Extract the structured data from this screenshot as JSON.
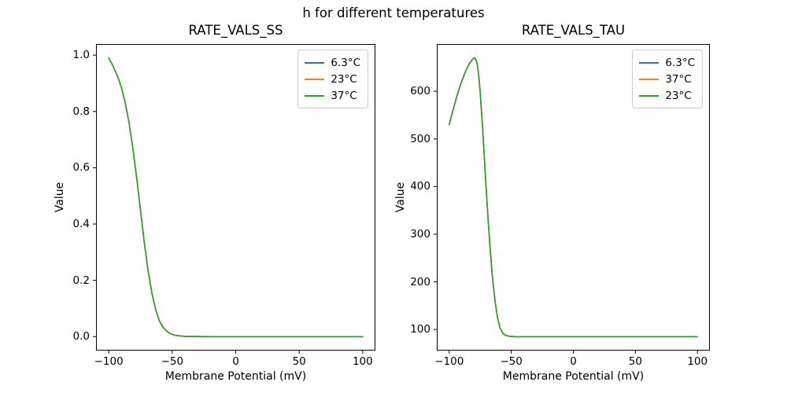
{
  "figure": {
    "title": "h for different temperatures",
    "background": "#ffffff"
  },
  "chart_data": [
    {
      "type": "line",
      "title": "RATE_VALS_SS",
      "xlabel": "Membrane Potential (mV)",
      "ylabel": "Value",
      "xlim": [
        -110,
        110
      ],
      "ylim": [
        -0.0495,
        1.0395
      ],
      "grid": false,
      "xticks": {
        "values": [
          -100,
          -50,
          0,
          50,
          100
        ],
        "labels": [
          "−100",
          "−50",
          "0",
          "50",
          "100"
        ]
      },
      "yticks": {
        "values": [
          0.0,
          0.2,
          0.4,
          0.6,
          0.8,
          1.0
        ],
        "labels": [
          "0.0",
          "0.2",
          "0.4",
          "0.6",
          "0.8",
          "1.0"
        ]
      },
      "x": [
        -100,
        -97,
        -94,
        -92,
        -90,
        -87,
        -84,
        -81,
        -78,
        -75,
        -72,
        -69,
        -66,
        -63,
        -60,
        -57,
        -54,
        -51,
        -48,
        -45,
        -40,
        -35,
        -30,
        -20,
        -10,
        0,
        20,
        40,
        60,
        80,
        100
      ],
      "series": [
        {
          "name": "6.3°C",
          "color": "#1f77b4",
          "values": [
            0.99,
            0.965,
            0.935,
            0.912,
            0.885,
            0.83,
            0.76,
            0.67,
            0.565,
            0.45,
            0.335,
            0.235,
            0.155,
            0.095,
            0.055,
            0.032,
            0.018,
            0.01,
            0.005,
            0.003,
            0.001,
            0.0005,
            0.0002,
            0,
            0,
            0,
            0,
            0,
            0,
            0,
            0
          ]
        },
        {
          "name": "23°C",
          "color": "#ff7f0e",
          "values": [
            0.99,
            0.965,
            0.935,
            0.912,
            0.885,
            0.83,
            0.76,
            0.67,
            0.565,
            0.45,
            0.335,
            0.235,
            0.155,
            0.095,
            0.055,
            0.032,
            0.018,
            0.01,
            0.005,
            0.003,
            0.001,
            0.0005,
            0.0002,
            0,
            0,
            0,
            0,
            0,
            0,
            0,
            0
          ]
        },
        {
          "name": "37°C",
          "color": "#2ca02c",
          "values": [
            0.99,
            0.965,
            0.935,
            0.912,
            0.885,
            0.83,
            0.76,
            0.67,
            0.565,
            0.45,
            0.335,
            0.235,
            0.155,
            0.095,
            0.055,
            0.032,
            0.018,
            0.01,
            0.005,
            0.003,
            0.001,
            0.0005,
            0.0002,
            0,
            0,
            0,
            0,
            0,
            0,
            0,
            0
          ]
        }
      ],
      "legend": {
        "position": "upper right",
        "entries": [
          {
            "label": "6.3°C",
            "color": "#1f77b4"
          },
          {
            "label": "23°C",
            "color": "#ff7f0e"
          },
          {
            "label": "37°C",
            "color": "#2ca02c"
          }
        ]
      }
    },
    {
      "type": "line",
      "title": "RATE_VALS_TAU",
      "xlabel": "Membrane Potential (mV)",
      "ylabel": "Value",
      "xlim": [
        -110,
        110
      ],
      "ylim": [
        55.75,
        699.25
      ],
      "grid": false,
      "xticks": {
        "values": [
          -100,
          -50,
          0,
          50,
          100
        ],
        "labels": [
          "−100",
          "−50",
          "0",
          "50",
          "100"
        ]
      },
      "yticks": {
        "values": [
          100,
          200,
          300,
          400,
          500,
          600
        ],
        "labels": [
          "100",
          "200",
          "300",
          "400",
          "500",
          "600"
        ]
      },
      "x": [
        -100,
        -97,
        -94,
        -92,
        -90,
        -88,
        -86,
        -84,
        -82,
        -80,
        -79,
        -78,
        -77,
        -76,
        -75,
        -73,
        -71,
        -69,
        -67,
        -65,
        -63,
        -61,
        -59,
        -57,
        -55,
        -52,
        -50,
        -47,
        -44,
        -40,
        -30,
        -20,
        0,
        20,
        50,
        100
      ],
      "series": [
        {
          "name": "6.3°C",
          "color": "#1f77b4",
          "values": [
            530,
            560,
            588,
            605,
            620,
            634,
            647,
            657,
            665,
            670,
            669,
            663,
            650,
            628,
            597,
            520,
            430,
            345,
            268,
            205,
            158,
            124,
            103,
            93,
            88,
            86,
            85.5,
            85,
            85,
            85,
            85,
            85,
            85,
            85,
            85,
            85
          ]
        },
        {
          "name": "37°C",
          "color": "#ff7f0e",
          "values": [
            530,
            560,
            588,
            605,
            620,
            634,
            647,
            657,
            665,
            670,
            669,
            663,
            650,
            628,
            597,
            520,
            430,
            345,
            268,
            205,
            158,
            124,
            103,
            93,
            88,
            86,
            85.5,
            85,
            85,
            85,
            85,
            85,
            85,
            85,
            85,
            85
          ]
        },
        {
          "name": "23°C",
          "color": "#2ca02c",
          "values": [
            530,
            560,
            588,
            605,
            620,
            634,
            647,
            657,
            665,
            670,
            669,
            663,
            650,
            628,
            597,
            520,
            430,
            345,
            268,
            205,
            158,
            124,
            103,
            93,
            88,
            86,
            85.5,
            85,
            85,
            85,
            85,
            85,
            85,
            85,
            85,
            85
          ]
        }
      ],
      "legend": {
        "position": "upper right",
        "entries": [
          {
            "label": "6.3°C",
            "color": "#1f77b4"
          },
          {
            "label": "37°C",
            "color": "#ff7f0e"
          },
          {
            "label": "23°C",
            "color": "#2ca02c"
          }
        ]
      }
    }
  ]
}
